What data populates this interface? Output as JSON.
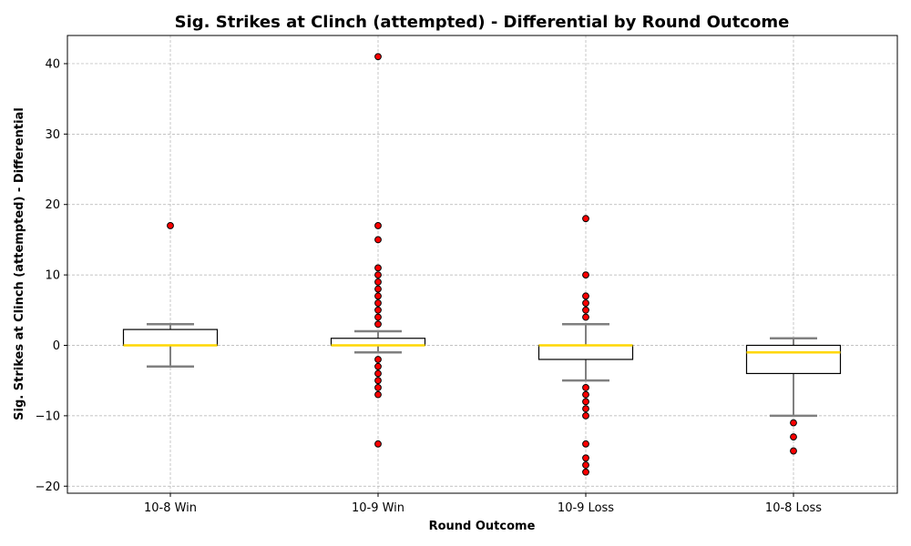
{
  "chart_data": {
    "type": "boxplot",
    "title": "Sig. Strikes at Clinch (attempted) - Differential by Round Outcome",
    "xlabel": "Round Outcome",
    "ylabel": "Sig. Strikes at Clinch (attempted) - Differential",
    "categories": [
      "10-8 Win",
      "10-9 Win",
      "10-9 Loss",
      "10-8 Loss"
    ],
    "ylim": [
      -21,
      44
    ],
    "yticks": [
      -20,
      -10,
      0,
      10,
      20,
      30,
      40
    ],
    "grid": true,
    "boxes": [
      {
        "category": "10-8 Win",
        "whisker_low": -3,
        "q1": 0,
        "median": 0,
        "q3": 2.25,
        "whisker_high": 3,
        "outliers": [
          17
        ]
      },
      {
        "category": "10-9 Win",
        "whisker_low": -1,
        "q1": 0,
        "median": 0,
        "q3": 1,
        "whisker_high": 2,
        "outliers": [
          41,
          17,
          15,
          11,
          10,
          9,
          8,
          7,
          6,
          5,
          4,
          3,
          -2,
          -3,
          -4,
          -5,
          -6,
          -7,
          -14
        ]
      },
      {
        "category": "10-9 Loss",
        "whisker_low": -5,
        "q1": -2,
        "median": 0,
        "q3": 0,
        "whisker_high": 3,
        "outliers": [
          18,
          10,
          7,
          6,
          5,
          4,
          -6,
          -7,
          -8,
          -9,
          -10,
          -14,
          -16,
          -17,
          -18
        ]
      },
      {
        "category": "10-8 Loss",
        "whisker_low": -10,
        "q1": -4,
        "median": -1,
        "q3": 0,
        "whisker_high": 1,
        "outliers": [
          -11,
          -13,
          -15
        ]
      }
    ],
    "colors": {
      "median": "#ffd700",
      "whisker": "#808080",
      "box": "#000000",
      "outlier_fill": "#ff0000",
      "outlier_edge": "#000000",
      "grid": "#b0b0b0"
    }
  }
}
